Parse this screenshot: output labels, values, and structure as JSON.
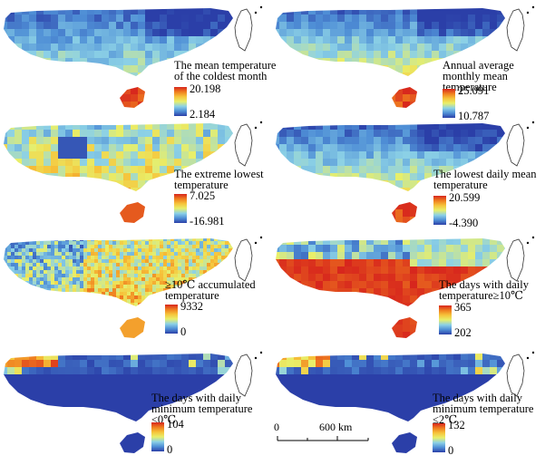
{
  "colors": {
    "ramp": [
      "#2b3fa8",
      "#4f8fd6",
      "#8cd1e6",
      "#e8ef6a",
      "#f6c33a",
      "#ef7d1f",
      "#d7261d"
    ],
    "water": "#ffffff",
    "outline": "#333333"
  },
  "panels": [
    {
      "id": "coldest-month",
      "label": "The mean temperature\nof the coldest month",
      "max": "20.198",
      "min": "2.184",
      "pattern": "gradient-south",
      "hot": 0.55
    },
    {
      "id": "annual-monthly-mean",
      "label": "Annual average\nmonthly mean\ntemperature",
      "max": "25.091",
      "min": "10.787",
      "pattern": "gradient-south",
      "hot": 0.75
    },
    {
      "id": "extreme-lowest",
      "label": "The extreme lowest\ntemperature",
      "max": "7.025",
      "min": "-16.981",
      "pattern": "patchy",
      "hot": 0.45
    },
    {
      "id": "lowest-daily-mean",
      "label": "The lowest daily mean\ntemperature",
      "max": "20.599",
      "min": "-4.390",
      "pattern": "gradient-south",
      "hot": 0.7
    },
    {
      "id": "accumulated-temp",
      "label": "≥10℃ accumulated\ntemperature",
      "max": "9332",
      "min": "0",
      "pattern": "noisy",
      "hot": 0.6
    },
    {
      "id": "days-above-10",
      "label": "The days with daily\ntemperature≥10℃",
      "max": "365",
      "min": "202",
      "pattern": "red-dominant",
      "hot": 0.95
    },
    {
      "id": "days-min-below-0",
      "label": "The days with daily\nminimum temperature\n≤0℃",
      "max": "104",
      "min": "0",
      "pattern": "blue-dominant",
      "hot": 0.1
    },
    {
      "id": "days-below-2",
      "label": "The days with daily\nminimum temperature\n≤2℃",
      "max": "132",
      "min": "0",
      "pattern": "blue-dominant",
      "hot": 0.1
    }
  ],
  "scale_bar": {
    "start": "0",
    "end": "600 km"
  }
}
